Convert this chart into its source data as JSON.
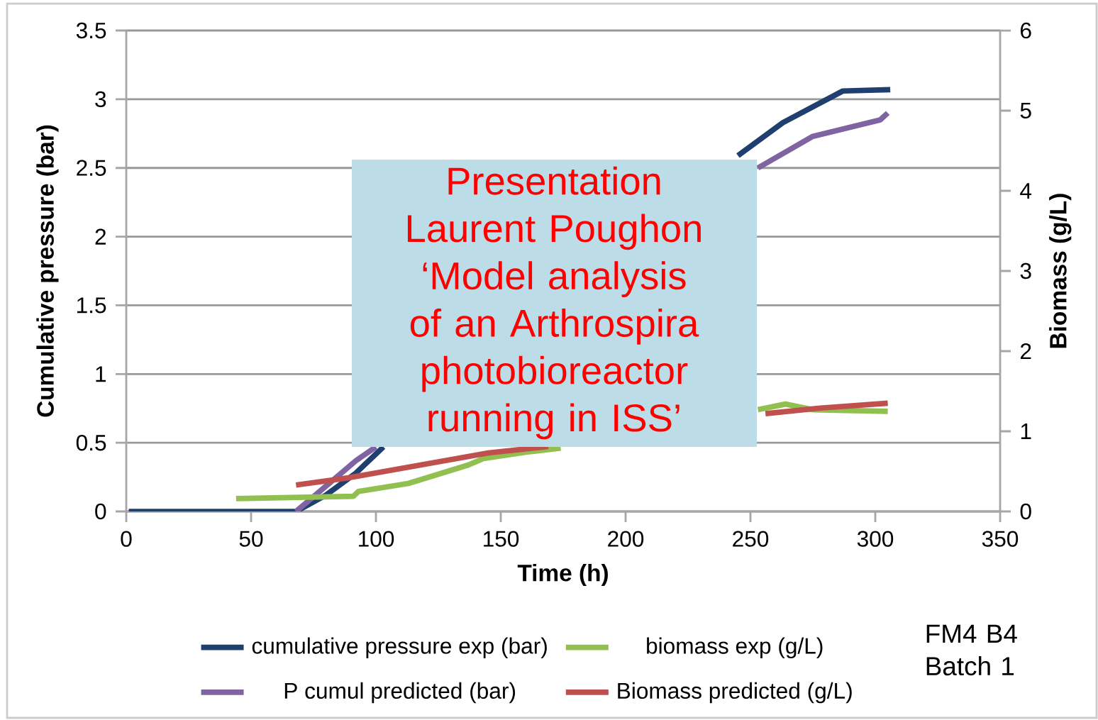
{
  "chart_data": {
    "type": "line",
    "xlabel": "Time (h)",
    "ylabel": "Cumulative pressure (bar)",
    "y2label": "Biomass (g/L)",
    "xlim": [
      0,
      350
    ],
    "xticks": [
      0,
      50,
      100,
      150,
      200,
      250,
      300,
      350
    ],
    "ylim": [
      0,
      3.5
    ],
    "yticks": [
      0,
      0.5,
      1,
      1.5,
      2,
      2.5,
      3,
      3.5
    ],
    "y2lim": [
      0,
      6
    ],
    "y2ticks": [
      0,
      1,
      2,
      3,
      4,
      5,
      6
    ],
    "grid": "y",
    "legend": "bottom",
    "series": [
      {
        "name": "cumulative pressure exp (bar)",
        "color": "#1f3f6e",
        "x": [
          1,
          68,
          80,
          92,
          103,
          175,
          245,
          263,
          287,
          306
        ],
        "values": [
          0,
          0,
          0.12,
          0.28,
          0.47,
          null,
          2.59,
          2.83,
          3.06,
          3.07
        ]
      },
      {
        "name": "biomass exp (g/L)",
        "color": "#92c050",
        "axis": "y2",
        "x": [
          44,
          91,
          93,
          113,
          137,
          143,
          160,
          174,
          210,
          253,
          264,
          275,
          305
        ],
        "values": [
          0.16,
          0.19,
          0.25,
          0.35,
          0.58,
          0.66,
          0.74,
          0.79,
          null,
          1.27,
          1.34,
          1.27,
          1.25
        ]
      },
      {
        "name": "P cumul predicted (bar)",
        "color": "#8064a2",
        "x": [
          68,
          81,
          92,
          100,
          175,
          253,
          275,
          302,
          305
        ],
        "values": [
          0,
          0.2,
          0.37,
          0.47,
          null,
          2.5,
          2.73,
          2.85,
          2.9
        ]
      },
      {
        "name": "Biomass predicted (g/L)",
        "color": "#c0504d",
        "axis": "y2",
        "x": [
          68,
          89,
          145,
          169,
          210,
          256,
          278,
          305
        ],
        "values": [
          0.33,
          0.42,
          0.73,
          0.81,
          null,
          1.22,
          1.29,
          1.35
        ]
      }
    ],
    "annotations": [
      "Presentation Laurent Poughon ‘Model analysis of an Arthrospira photobioreactor running in ISS’",
      "FM4 B4 Batch 1"
    ]
  }
}
